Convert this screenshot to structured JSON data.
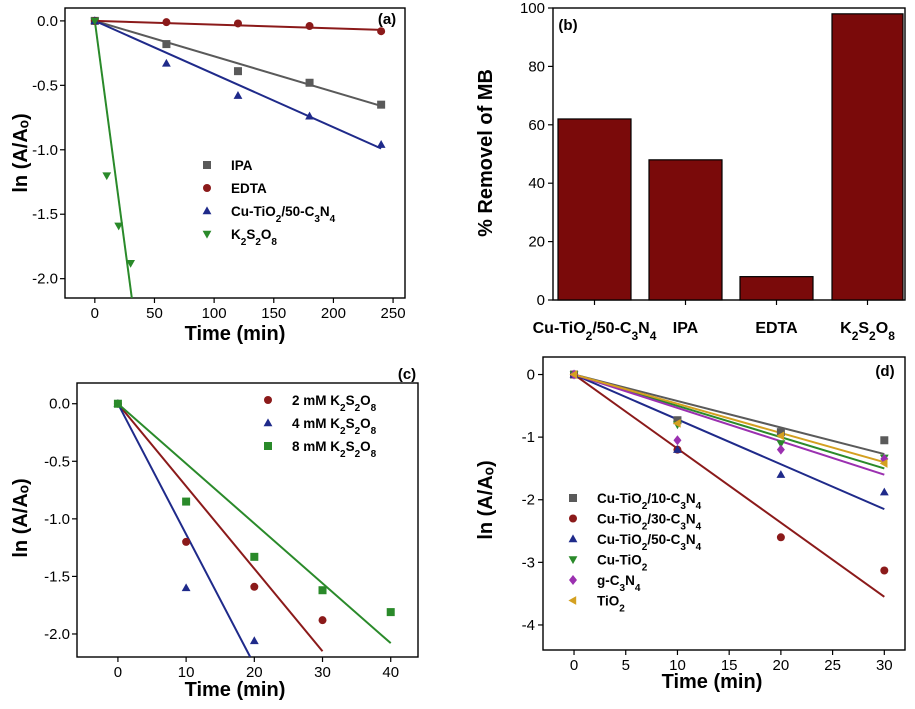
{
  "chart_data": [
    {
      "panel": "(a)",
      "type": "scatter",
      "xlabel": "Time (min)",
      "ylabel": "ln (A/Aₒ)",
      "xlim": [
        -25,
        260
      ],
      "ylim": [
        -2.15,
        0.1
      ],
      "xticks": [
        0,
        50,
        100,
        150,
        200,
        250
      ],
      "yticks": [
        0.0,
        -0.5,
        -1.0,
        -1.5,
        -2.0
      ],
      "series": [
        {
          "name": "IPA",
          "sub": "",
          "color": "#5a5a5a",
          "marker": "square",
          "x": [
            0,
            60,
            120,
            180,
            240
          ],
          "y": [
            0,
            -0.18,
            -0.39,
            -0.48,
            -0.65
          ],
          "fit": [
            [
              0,
              0
            ],
            [
              240,
              -0.66
            ]
          ]
        },
        {
          "name": "EDTA",
          "sub": "",
          "color": "#8b1a1a",
          "marker": "circle",
          "x": [
            0,
            60,
            120,
            180,
            240
          ],
          "y": [
            0,
            -0.01,
            -0.02,
            -0.04,
            -0.08
          ],
          "fit": [
            [
              0,
              0
            ],
            [
              240,
              -0.07
            ]
          ]
        },
        {
          "name": "Cu-TiO2/50-C3N4",
          "sub": "Cu-TiO_2/50-C_3N_4",
          "color": "#1f2a8a",
          "marker": "triangle-up",
          "x": [
            0,
            60,
            120,
            180,
            240
          ],
          "y": [
            0,
            -0.33,
            -0.58,
            -0.74,
            -0.96
          ],
          "fit": [
            [
              0,
              0
            ],
            [
              240,
              -0.99
            ]
          ]
        },
        {
          "name": "K2S2O8",
          "sub": "K_2S_2O_8",
          "color": "#2a8a2a",
          "marker": "triangle-down",
          "x": [
            0,
            10,
            20,
            30
          ],
          "y": [
            0,
            -1.2,
            -1.59,
            -1.88
          ],
          "fit": [
            [
              0,
              0
            ],
            [
              31,
              -2.15
            ]
          ]
        }
      ]
    },
    {
      "panel": "(b)",
      "type": "bar",
      "ylabel": "% Removel of MB",
      "ylim": [
        0,
        100
      ],
      "yticks": [
        0,
        20,
        40,
        60,
        80,
        100
      ],
      "color": "#7a0a0a",
      "categories": [
        "Cu-TiO2/50-C3N4",
        "IPA",
        "EDTA",
        "K2S2O8"
      ],
      "category_sub": [
        "Cu-TiO_2/50-C_3N_4",
        "IPA",
        "EDTA",
        "K_2S_2O_8"
      ],
      "values": [
        62,
        48,
        8,
        98
      ]
    },
    {
      "panel": "(c)",
      "type": "scatter",
      "xlabel": "Time (min)",
      "ylabel": "ln (A/Aₒ)",
      "xlim": [
        -6,
        44
      ],
      "ylim": [
        -2.2,
        0.18
      ],
      "xticks": [
        0,
        10,
        20,
        30,
        40
      ],
      "yticks": [
        0.0,
        -0.5,
        -1.0,
        -1.5,
        -2.0
      ],
      "series": [
        {
          "name": "2 mM K2S2O8",
          "sub": "2 mM K_2S_2O_8",
          "color": "#8b1a1a",
          "marker": "circle",
          "x": [
            0,
            10,
            20,
            30
          ],
          "y": [
            0,
            -1.2,
            -1.59,
            -1.88
          ],
          "fit": [
            [
              0,
              0
            ],
            [
              30,
              -2.15
            ]
          ]
        },
        {
          "name": "4 mM K2S2O8",
          "sub": "4 mM K_2S_2O_8",
          "color": "#1f2a8a",
          "marker": "triangle-up",
          "x": [
            0,
            10,
            20
          ],
          "y": [
            0,
            -1.6,
            -2.06
          ],
          "fit": [
            [
              0,
              0
            ],
            [
              19.4,
              -2.2
            ]
          ]
        },
        {
          "name": "8 mM K2S2O8",
          "sub": "8 mM K_2S_2O_8",
          "color": "#2a8a2a",
          "marker": "square",
          "x": [
            0,
            10,
            20,
            30,
            40
          ],
          "y": [
            0,
            -0.85,
            -1.33,
            -1.62,
            -1.81
          ],
          "fit": [
            [
              0,
              0
            ],
            [
              40,
              -2.08
            ]
          ]
        }
      ]
    },
    {
      "panel": "(d)",
      "type": "scatter",
      "xlabel": "Time (min)",
      "ylabel": "ln (A/Aₒ)",
      "xlim": [
        -3,
        32
      ],
      "ylim": [
        -4.4,
        0.28
      ],
      "xticks": [
        0,
        5,
        10,
        15,
        20,
        25,
        30
      ],
      "yticks": [
        0,
        -1,
        -2,
        -3,
        -4
      ],
      "series": [
        {
          "name": "Cu-TiO2/10-C3N4",
          "sub": "Cu-TiO_2/10-C_3N_4",
          "color": "#5a5a5a",
          "marker": "square",
          "x": [
            0,
            10,
            20,
            30
          ],
          "y": [
            0,
            -0.73,
            -0.92,
            -1.05
          ],
          "fit": [
            [
              0,
              0
            ],
            [
              30,
              -1.27
            ]
          ]
        },
        {
          "name": "Cu-TiO2/30-C3N4",
          "sub": "Cu-TiO_2/30-C_3N_4",
          "color": "#8b1a1a",
          "marker": "circle",
          "x": [
            0,
            10,
            20,
            30
          ],
          "y": [
            0,
            -1.2,
            -2.6,
            -3.13
          ],
          "fit": [
            [
              0,
              0
            ],
            [
              30,
              -3.55
            ]
          ]
        },
        {
          "name": "Cu-TiO2/50-C3N4",
          "sub": "Cu-TiO_2/50-C_3N_4",
          "color": "#1f2a8a",
          "marker": "triangle-up",
          "x": [
            0,
            10,
            20,
            30
          ],
          "y": [
            0,
            -1.2,
            -1.6,
            -1.88
          ],
          "fit": [
            [
              0,
              0
            ],
            [
              30,
              -2.15
            ]
          ]
        },
        {
          "name": "Cu-TiO2",
          "sub": "Cu-TiO_2",
          "color": "#2a8a2a",
          "marker": "triangle-down",
          "x": [
            0,
            10,
            20,
            30
          ],
          "y": [
            0,
            -0.8,
            -1.1,
            -1.33
          ],
          "fit": [
            [
              0,
              0
            ],
            [
              30,
              -1.5
            ]
          ]
        },
        {
          "name": "g-C3N4",
          "sub": "g-C_3N_4",
          "color": "#9b30b0",
          "marker": "diamond",
          "x": [
            0,
            10,
            20,
            30
          ],
          "y": [
            0,
            -1.05,
            -1.2,
            -1.35
          ],
          "fit": [
            [
              0,
              0
            ],
            [
              30,
              -1.6
            ]
          ]
        },
        {
          "name": "TiO2",
          "sub": "TiO_2",
          "color": "#d4a020",
          "marker": "triangle-left",
          "x": [
            0,
            10,
            20,
            30
          ],
          "y": [
            0,
            -0.78,
            -0.98,
            -1.42
          ],
          "fit": [
            [
              0,
              0
            ],
            [
              30,
              -1.4
            ]
          ]
        }
      ]
    }
  ]
}
